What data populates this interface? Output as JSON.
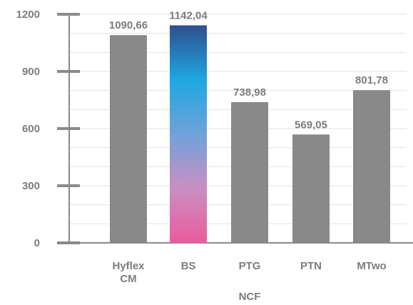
{
  "chart_data": {
    "type": "bar",
    "categories": [
      [
        "Hyflex",
        "CM"
      ],
      [
        "BS"
      ],
      [
        "PTG"
      ],
      [
        "PTN"
      ],
      [
        "MTwo"
      ]
    ],
    "values": [
      1090.66,
      1142.04,
      738.98,
      569.05,
      801.78
    ],
    "value_labels": [
      "1090,66",
      "1142,04",
      "738,98",
      "569,05",
      "801,78"
    ],
    "xlabel": "NCF",
    "ylabel": "",
    "ylim": [
      0,
      1200
    ],
    "yticks": [
      0,
      300,
      600,
      900,
      1200
    ],
    "grid": true,
    "bar_color": "#898989",
    "highlight_index": 1,
    "highlight_gradient": [
      "#2e4f8e",
      "#1ea7e1",
      "#6fa2da",
      "#c98fc2",
      "#ea5b9e"
    ]
  }
}
